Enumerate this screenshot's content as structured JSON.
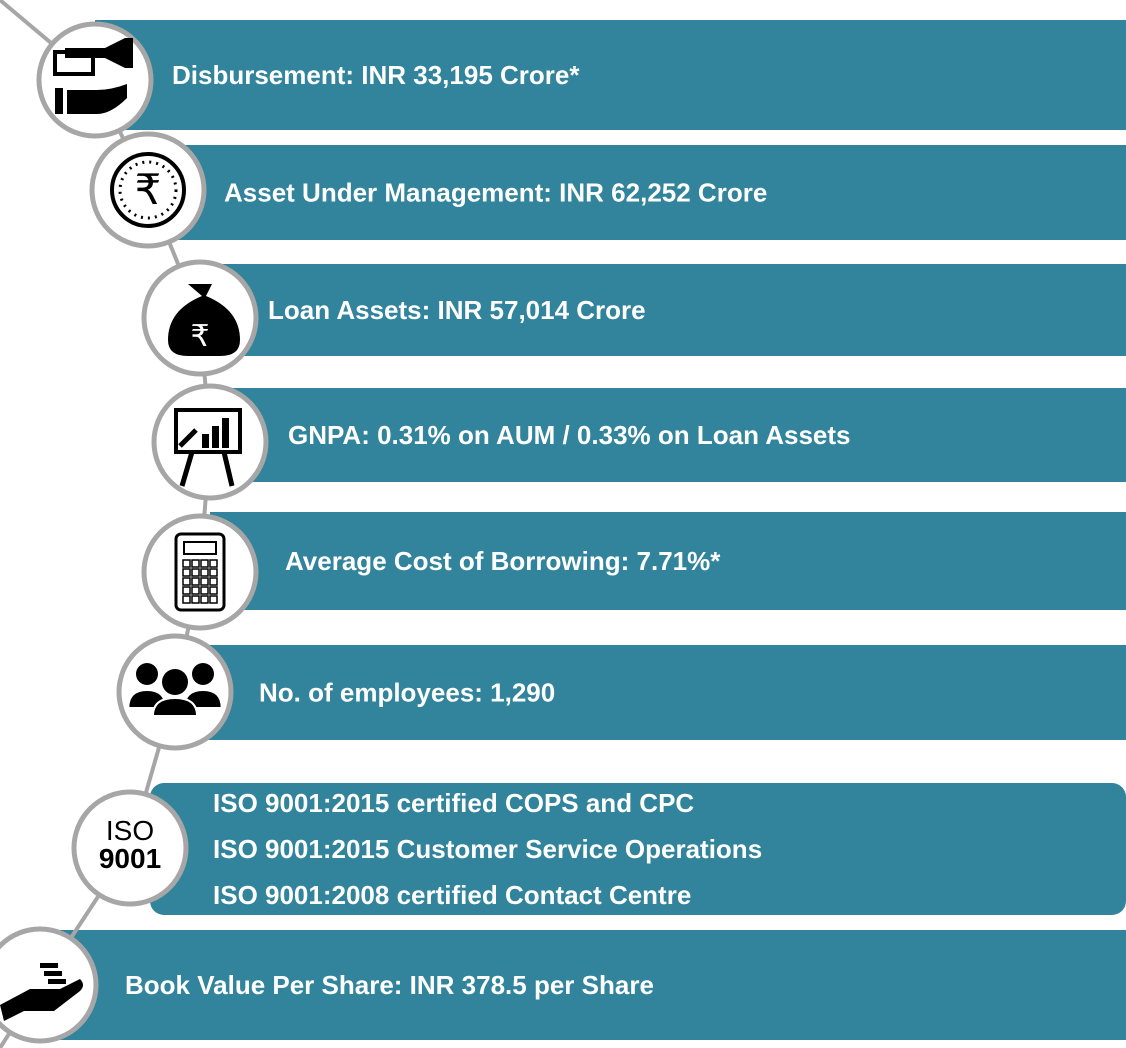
{
  "items": [
    {
      "lines": [
        "Disbursement: INR 33,195 Crore*"
      ]
    },
    {
      "lines": [
        "Asset Under Management: INR 62,252 Crore"
      ],
      "icon_text": "₹"
    },
    {
      "lines": [
        "Loan Assets: INR 57,014 Crore"
      ],
      "icon_text": "₹"
    },
    {
      "lines": [
        "GNPA: 0.31% on AUM / 0.33% on Loan Assets"
      ]
    },
    {
      "lines": [
        "Average Cost of Borrowing: 7.71%*"
      ]
    },
    {
      "lines": [
        "No. of employees: 1,290"
      ]
    },
    {
      "lines": [
        "ISO 9001:2015 certified COPS and CPC",
        "ISO 9001:2015 Customer Service Operations",
        "ISO 9001:2008 certified Contact Centre"
      ],
      "icon_text": [
        "ISO",
        "9001"
      ]
    },
    {
      "lines": [
        "Book Value Per Share: INR 378.5 per Share"
      ]
    }
  ]
}
